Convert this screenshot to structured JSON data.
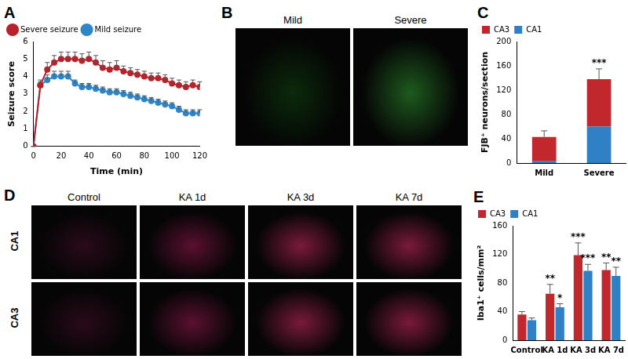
{
  "chart_data": [
    {
      "title": "A",
      "type": "line",
      "x": [
        0,
        5,
        10,
        15,
        20,
        25,
        30,
        35,
        40,
        45,
        50,
        55,
        60,
        65,
        70,
        75,
        80,
        85,
        90,
        95,
        100,
        105,
        110,
        115,
        120
      ],
      "series": [
        {
          "name": "Severe seizure",
          "color": "#b8222a",
          "marker": "circle",
          "values": [
            0,
            3.5,
            4.4,
            4.8,
            5.0,
            5.0,
            5.0,
            4.9,
            5.0,
            4.8,
            4.5,
            4.4,
            4.5,
            4.3,
            4.2,
            4.1,
            4.0,
            3.9,
            3.9,
            3.8,
            3.6,
            3.5,
            3.4,
            3.5,
            3.4
          ],
          "errors": [
            0,
            0.3,
            0.4,
            0.4,
            0.4,
            0.4,
            0.4,
            0.4,
            0.4,
            0.4,
            0.4,
            0.4,
            0.4,
            0.3,
            0.3,
            0.3,
            0.3,
            0.3,
            0.3,
            0.3,
            0.3,
            0.3,
            0.3,
            0.3,
            0.3
          ]
        },
        {
          "name": "Mild seizure",
          "color": "#2e86c8",
          "marker": "circle",
          "values": [
            0,
            3.5,
            3.8,
            4.0,
            4.0,
            4.0,
            3.6,
            3.4,
            3.4,
            3.3,
            3.2,
            3.1,
            3.1,
            3.0,
            2.9,
            2.8,
            2.7,
            2.6,
            2.5,
            2.4,
            2.3,
            2.1,
            1.9,
            1.9,
            1.9
          ],
          "errors": [
            0,
            0.2,
            0.3,
            0.3,
            0.3,
            0.3,
            0.2,
            0.2,
            0.2,
            0.2,
            0.2,
            0.2,
            0.2,
            0.2,
            0.2,
            0.2,
            0.2,
            0.2,
            0.2,
            0.2,
            0.2,
            0.2,
            0.2,
            0.2,
            0.2
          ]
        }
      ],
      "xlabel": "Time (min)",
      "ylabel": "Seizure score",
      "xlim": [
        0,
        120
      ],
      "xticks": [
        0,
        20,
        40,
        60,
        80,
        100,
        120
      ],
      "ylim": [
        0,
        6
      ],
      "yticks": [
        0,
        1,
        2,
        3,
        4,
        5,
        6
      ],
      "grid": false,
      "legend": "upper left"
    },
    {
      "title": "C",
      "type": "bar",
      "stacked": true,
      "categories": [
        "Mild",
        "Severe"
      ],
      "series": [
        {
          "name": "CA3",
          "color": "#c0282d",
          "values": [
            40,
            78
          ],
          "errors": [
            10,
            17
          ],
          "significance": [
            null,
            "***"
          ]
        },
        {
          "name": "CA1",
          "color": "#2f80c4",
          "values": [
            3,
            60
          ]
        }
      ],
      "ylabel": "FJB⁺ neurons/section",
      "ylim": [
        0,
        200
      ],
      "yticks": [
        0,
        40,
        80,
        120,
        160,
        200
      ],
      "grid": false,
      "legend": "upper left"
    },
    {
      "title": "E",
      "type": "bar",
      "categories": [
        "Control",
        "KA 1d",
        "KA 3d",
        "KA 7d"
      ],
      "series": [
        {
          "name": "CA3",
          "color": "#c0282d",
          "values": [
            36,
            65,
            119,
            98
          ],
          "errors": [
            4,
            13,
            17,
            10
          ],
          "significance": [
            null,
            "**",
            "***",
            "**"
          ]
        },
        {
          "name": "CA1",
          "color": "#2f80c4",
          "values": [
            28,
            46,
            97,
            90
          ],
          "errors": [
            3,
            5,
            9,
            12
          ],
          "significance": [
            null,
            "*",
            "***",
            "**"
          ]
        }
      ],
      "ylabel": "Iba1⁺ cells/mm²",
      "ylim": [
        0,
        160
      ],
      "yticks": [
        0,
        40,
        80,
        120,
        160
      ],
      "grid": false,
      "legend": "upper left"
    }
  ],
  "images": [
    {
      "title": "B",
      "columns": [
        "Mild",
        "Severe"
      ]
    },
    {
      "title": "D",
      "columns": [
        "Control",
        "KA 1d",
        "KA 3d",
        "KA 7d"
      ],
      "rows": [
        "CA1",
        "CA3"
      ]
    }
  ]
}
